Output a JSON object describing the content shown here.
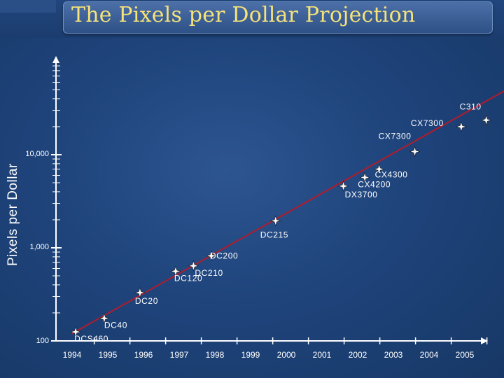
{
  "chart_data": {
    "type": "scatter",
    "title": "The Pixels per Dollar Projection",
    "ylabel": "Pixels per Dollar",
    "xlabel": "",
    "yscale": "log",
    "ylim": [
      100,
      100000
    ],
    "xlim": [
      1993.8,
      2006.7
    ],
    "x_ticks": [
      "1994",
      "1995",
      "1996",
      "1997",
      "1998",
      "1999",
      "2000",
      "2001",
      "2002",
      "2003",
      "2004",
      "2005"
    ],
    "y_ticks": [
      {
        "value": 100,
        "label": "100"
      },
      {
        "value": 1000,
        "label": "1,000"
      },
      {
        "value": 10000,
        "label": "10,000"
      }
    ],
    "trendline": {
      "from": [
        1994.0,
        120
      ],
      "to": [
        2006.0,
        55000
      ],
      "color": "#b01c2c"
    },
    "points": [
      {
        "x": 1994.1,
        "y": 125,
        "label": "DCS460"
      },
      {
        "x": 1994.9,
        "y": 175,
        "label": "DC40"
      },
      {
        "x": 1995.9,
        "y": 330,
        "label": "DC20"
      },
      {
        "x": 1996.9,
        "y": 560,
        "label": "DC120"
      },
      {
        "x": 1997.4,
        "y": 640,
        "label": "DC210"
      },
      {
        "x": 1997.9,
        "y": 820,
        "label": "DC200"
      },
      {
        "x": 1999.7,
        "y": 1950,
        "label": "DC215"
      },
      {
        "x": 2001.6,
        "y": 4600,
        "label": "DX3700"
      },
      {
        "x": 2002.2,
        "y": 5700,
        "label": "CX4200"
      },
      {
        "x": 2002.6,
        "y": 7000,
        "label": "CX4300"
      },
      {
        "x": 2003.6,
        "y": 10800,
        "label": "CX7300"
      },
      {
        "x": 2004.9,
        "y": 20000,
        "label": "CX7300"
      },
      {
        "x": 2005.6,
        "y": 23500,
        "label": "C310"
      }
    ],
    "grid": false,
    "colors": {
      "axis": "#ffffff",
      "text": "#ffffff",
      "title": "#f5e27a",
      "trend": "#b01c2c"
    }
  }
}
